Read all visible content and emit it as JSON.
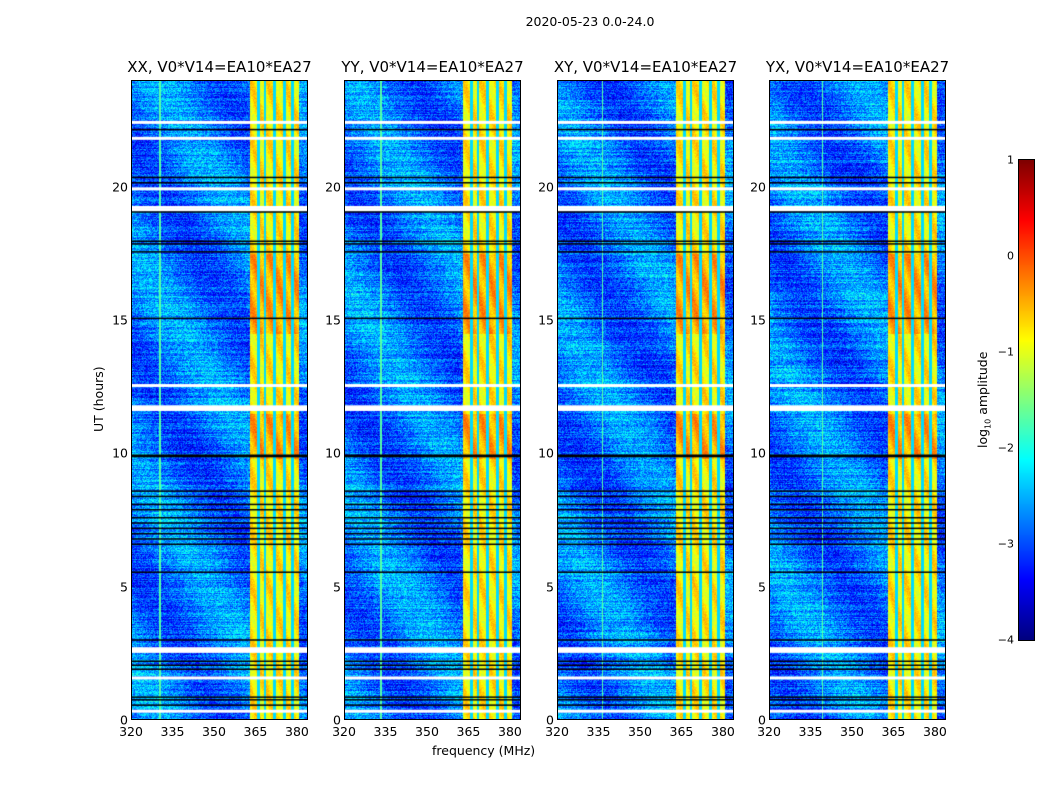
{
  "chart_data": {
    "type": "heatmap",
    "title": "2020-05-23 0.0-24.0",
    "xlabel": "frequency (MHz)",
    "ylabel": "UT (hours)",
    "xlim": [
      320,
      384
    ],
    "ylim": [
      0,
      24
    ],
    "xticks": [
      "320",
      "335",
      "350",
      "365",
      "380"
    ],
    "xtick_values": [
      320,
      335,
      350,
      365,
      380
    ],
    "yticks": [
      "0",
      "5",
      "10",
      "15",
      "20"
    ],
    "ytick_values": [
      0,
      5,
      10,
      15,
      20
    ],
    "panels": [
      {
        "title": "XX, V0*V14=EA10*EA27"
      },
      {
        "title": "YY, V0*V14=EA10*EA27"
      },
      {
        "title": "XY, V0*V14=EA10*EA27"
      },
      {
        "title": "YX, V0*V14=EA10*EA27"
      }
    ],
    "colorbar": {
      "label": "log10 amplitude",
      "label_main": "log",
      "label_sub": "10",
      "label_rest": " amplitude",
      "colormap": "jet",
      "range": [
        -4,
        1
      ],
      "ticks": [
        "1",
        "0",
        "−1",
        "−2",
        "−3",
        "−4"
      ],
      "tick_values": [
        1,
        0,
        -1,
        -2,
        -3,
        -4
      ]
    },
    "features": {
      "background_level": -2.8,
      "rfi_band_mhz": [
        363,
        381
      ],
      "rfi_level": -0.8,
      "flagged_white_hours": [
        0.35,
        1.6,
        2.6,
        2.7,
        11.7,
        11.8,
        12.6,
        19.2,
        19.3,
        20.0,
        21.9,
        22.5
      ],
      "black_line_hours": [
        0.55,
        0.75,
        0.85,
        1.9,
        2.05,
        2.2,
        3.0,
        5.55,
        6.6,
        6.8,
        7.0,
        7.2,
        7.4,
        7.6,
        7.9,
        8.1,
        8.4,
        8.6,
        9.9,
        9.95,
        15.1,
        17.6,
        17.9,
        18.0,
        19.1,
        20.2,
        20.4,
        22.2
      ]
    }
  }
}
